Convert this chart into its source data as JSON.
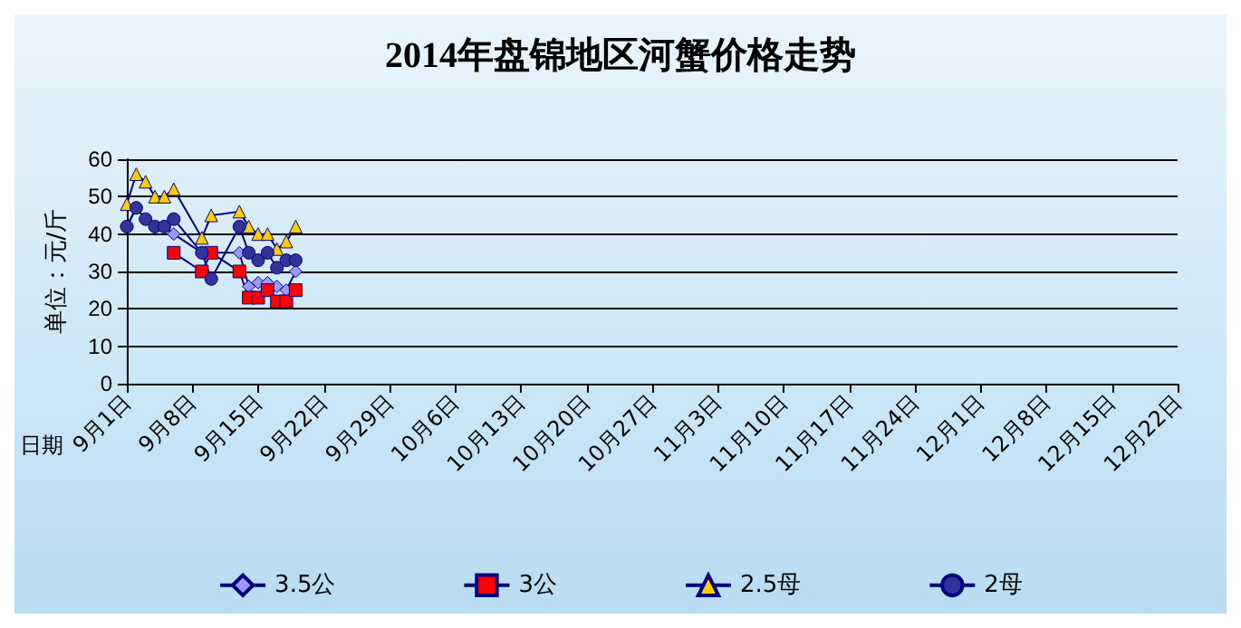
{
  "chart_data": {
    "type": "line",
    "title": "2014年盘锦地区河蟹价格走势",
    "xlabel": "日期",
    "ylabel": "单位：元/斤",
    "xlim": [
      "--09-01",
      "--12-22"
    ],
    "xticks": [
      {
        "value": "--09-01",
        "label": "9月1日"
      },
      {
        "value": "--09-08",
        "label": "9月8日"
      },
      {
        "value": "--09-15",
        "label": "9月15日"
      },
      {
        "value": "--09-22",
        "label": "9月22日"
      },
      {
        "value": "--09-29",
        "label": "9月29日"
      },
      {
        "value": "--10-06",
        "label": "10月6日"
      },
      {
        "value": "--10-13",
        "label": "10月13日"
      },
      {
        "value": "--10-20",
        "label": "10月20日"
      },
      {
        "value": "--10-27",
        "label": "10月27日"
      },
      {
        "value": "--11-03",
        "label": "11月3日"
      },
      {
        "value": "--11-10",
        "label": "11月10日"
      },
      {
        "value": "--11-17",
        "label": "11月17日"
      },
      {
        "value": "--11-24",
        "label": "11月24日"
      },
      {
        "value": "--12-01",
        "label": "12月1日"
      },
      {
        "value": "--12-08",
        "label": "12月8日"
      },
      {
        "value": "--12-15",
        "label": "12月15日"
      },
      {
        "value": "--12-22",
        "label": "12月22日"
      }
    ],
    "ylim": [
      0,
      60
    ],
    "yticks": [
      0,
      10,
      20,
      30,
      40,
      50,
      60
    ],
    "grid": "y",
    "legend": "bottom",
    "series": [
      {
        "name": "3.5公",
        "color": "#9999ff",
        "marker": "diamond",
        "x": [
          "--09-01",
          "--09-02",
          "--09-03",
          "--09-04",
          "--09-05",
          "--09-06",
          "--09-09",
          "--09-10",
          "--09-13",
          "--09-14",
          "--09-15",
          "--09-16",
          "--09-17",
          "--09-18",
          "--09-19"
        ],
        "values": [
          42,
          47,
          null,
          42,
          42,
          40,
          35,
          35,
          35,
          26,
          27,
          27,
          26,
          25,
          30
        ]
      },
      {
        "name": "3公",
        "color": "#ff0000",
        "marker": "square",
        "x": [
          "--09-06",
          "--09-09",
          "--09-10",
          "--09-13",
          "--09-14",
          "--09-15",
          "--09-16",
          "--09-17",
          "--09-18",
          "--09-19"
        ],
        "values": [
          35,
          30,
          35,
          30,
          23,
          23,
          25,
          22,
          22,
          25
        ]
      },
      {
        "name": "2.5母",
        "color": "#ffcc00",
        "marker": "triangle",
        "x": [
          "--09-01",
          "--09-02",
          "--09-03",
          "--09-04",
          "--09-05",
          "--09-06",
          "--09-09",
          "--09-10",
          "--09-13",
          "--09-14",
          "--09-15",
          "--09-16",
          "--09-17",
          "--09-18",
          "--09-19"
        ],
        "values": [
          48,
          56,
          54,
          50,
          50,
          52,
          39,
          45,
          46,
          42,
          40,
          40,
          36,
          38,
          42
        ]
      },
      {
        "name": "2母",
        "color": "#333399",
        "marker": "circle",
        "x": [
          "--09-01",
          "--09-02",
          "--09-03",
          "--09-04",
          "--09-05",
          "--09-06",
          "--09-09",
          "--09-10",
          "--09-13",
          "--09-14",
          "--09-15",
          "--09-16",
          "--09-17",
          "--09-18",
          "--09-19"
        ],
        "values": [
          42,
          47,
          44,
          42,
          42,
          44,
          35,
          28,
          42,
          35,
          33,
          35,
          31,
          33,
          33
        ]
      }
    ]
  }
}
